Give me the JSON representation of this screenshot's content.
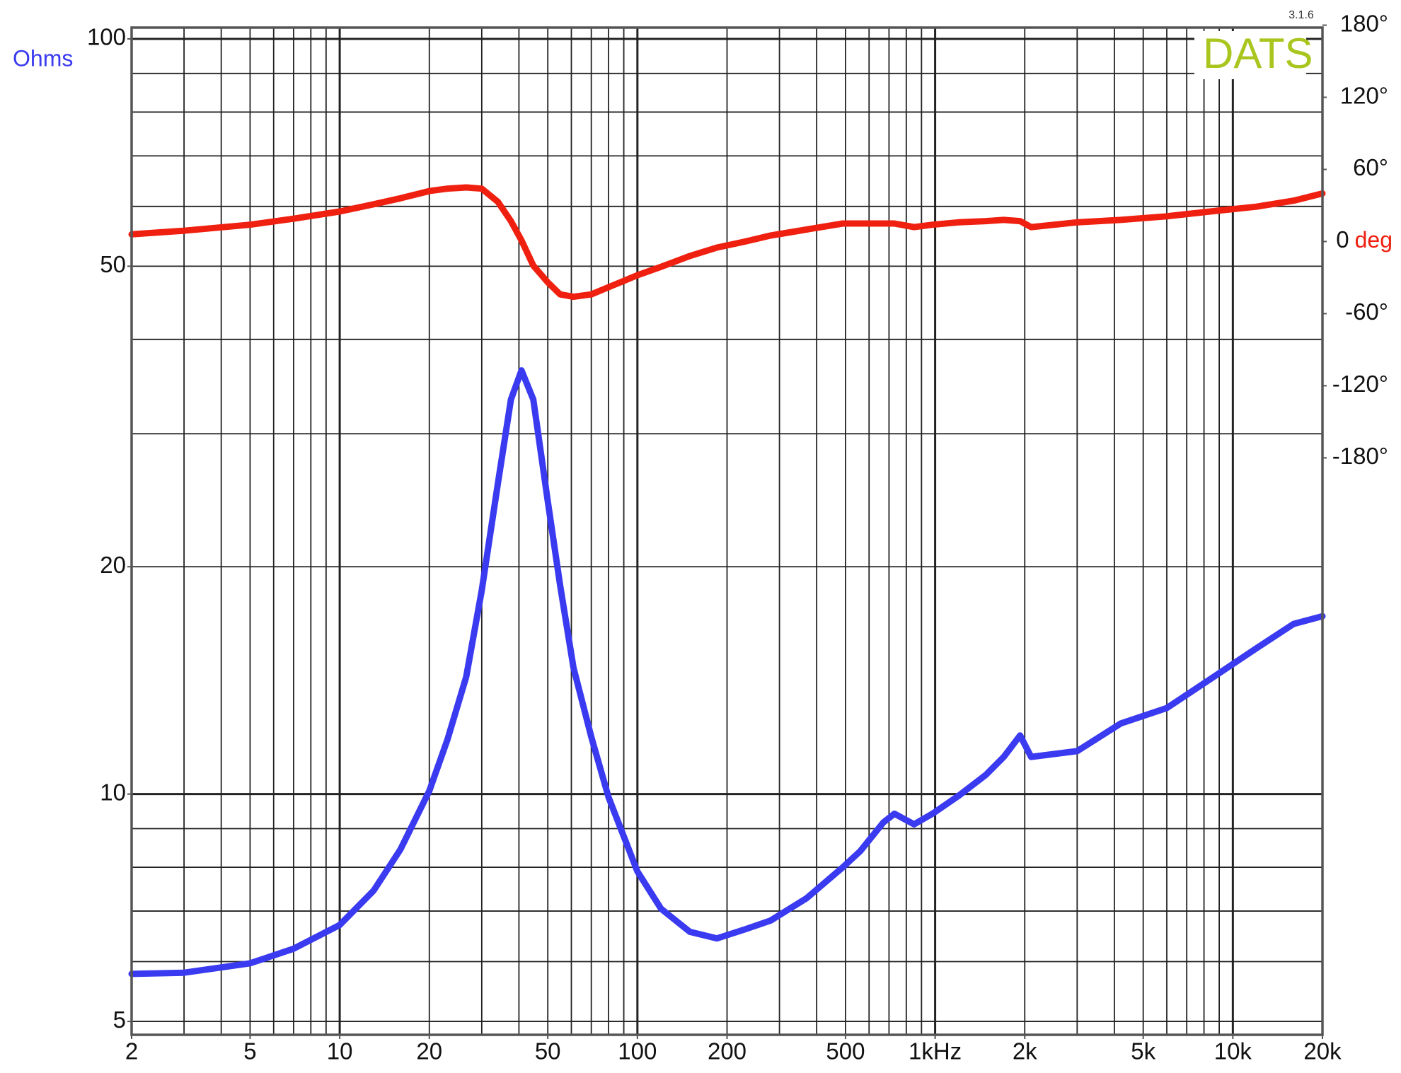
{
  "chart_data": {
    "type": "line",
    "ylabel": "Ohms",
    "y2label": "deg",
    "watermark": "DATS",
    "version": "3.1.6",
    "xscale": "log",
    "yscale": "log",
    "grid": true,
    "x": [
      2,
      3,
      5,
      7,
      10,
      13,
      16,
      20,
      23,
      26.6,
      30,
      34,
      37.6,
      40.8,
      44.7,
      50,
      55,
      61,
      70,
      80,
      100,
      120,
      150,
      185,
      230,
      280,
      370,
      490,
      560,
      670,
      730,
      850,
      980,
      1200,
      1480,
      1700,
      1930,
      2100,
      3000,
      4200,
      6000,
      8400,
      12000,
      16000,
      20000
    ],
    "series": [
      {
        "color": "#3a3af0",
        "axis": "y",
        "values": [
          5.78,
          5.8,
          5.97,
          6.24,
          6.71,
          7.45,
          8.45,
          10.1,
          11.8,
          14.3,
          18.6,
          25.8,
          33.3,
          36.4,
          33.3,
          24.4,
          18.9,
          14.7,
          11.9,
          9.9,
          7.9,
          7.05,
          6.57,
          6.44,
          6.62,
          6.8,
          7.28,
          8.0,
          8.4,
          9.17,
          9.42,
          9.12,
          9.42,
          9.95,
          10.6,
          11.2,
          11.96,
          11.2,
          11.4,
          12.4,
          13.0,
          14.2,
          15.6,
          16.8,
          17.2
        ]
      },
      {
        "color": "#f02010",
        "axis": "y2",
        "values": [
          6,
          9,
          14,
          19,
          25,
          31,
          36,
          42,
          44,
          45,
          44,
          33,
          17,
          1,
          -20,
          -34,
          -44,
          -46,
          -44,
          -38,
          -28,
          -21,
          -12,
          -5,
          0,
          5,
          10,
          15,
          15,
          15,
          15,
          12,
          14,
          16,
          17,
          18,
          17,
          12,
          16,
          18,
          21,
          25,
          29,
          34,
          40
        ]
      }
    ],
    "xlim": [
      2,
      20000
    ],
    "ylim": [
      4.8,
      103.5
    ],
    "y2lim": [
      -660,
      178
    ],
    "xticks": [
      2,
      5,
      10,
      20,
      50,
      100,
      200,
      500,
      {
        "value": 1000,
        "label": "1kHz"
      },
      {
        "value": 2000,
        "label": "2k"
      },
      {
        "value": 5000,
        "label": "5k"
      },
      {
        "value": 10000,
        "label": "10k"
      },
      {
        "value": 20000,
        "label": "20k"
      }
    ],
    "yticks": [
      5,
      10,
      20,
      50,
      100
    ],
    "y2ticks": [
      {
        "value": 180,
        "label": "180°"
      },
      {
        "value": 120,
        "label": "120°"
      },
      {
        "value": 60,
        "label": "60°"
      },
      0,
      {
        "value": -60,
        "label": "-60°"
      },
      {
        "value": -120,
        "label": "-120°"
      },
      {
        "value": -180,
        "label": "-180°"
      }
    ],
    "xgrid": [
      2,
      3,
      4,
      5,
      6,
      7,
      8,
      9,
      10,
      20,
      30,
      40,
      50,
      60,
      70,
      80,
      90,
      100,
      200,
      300,
      400,
      500,
      600,
      700,
      800,
      900,
      1000,
      2000,
      3000,
      4000,
      5000,
      6000,
      7000,
      8000,
      9000,
      10000,
      20000
    ],
    "ygrid": [
      5,
      6,
      7,
      8,
      9,
      10,
      20,
      30,
      40,
      50,
      60,
      70,
      80,
      90,
      100
    ]
  }
}
